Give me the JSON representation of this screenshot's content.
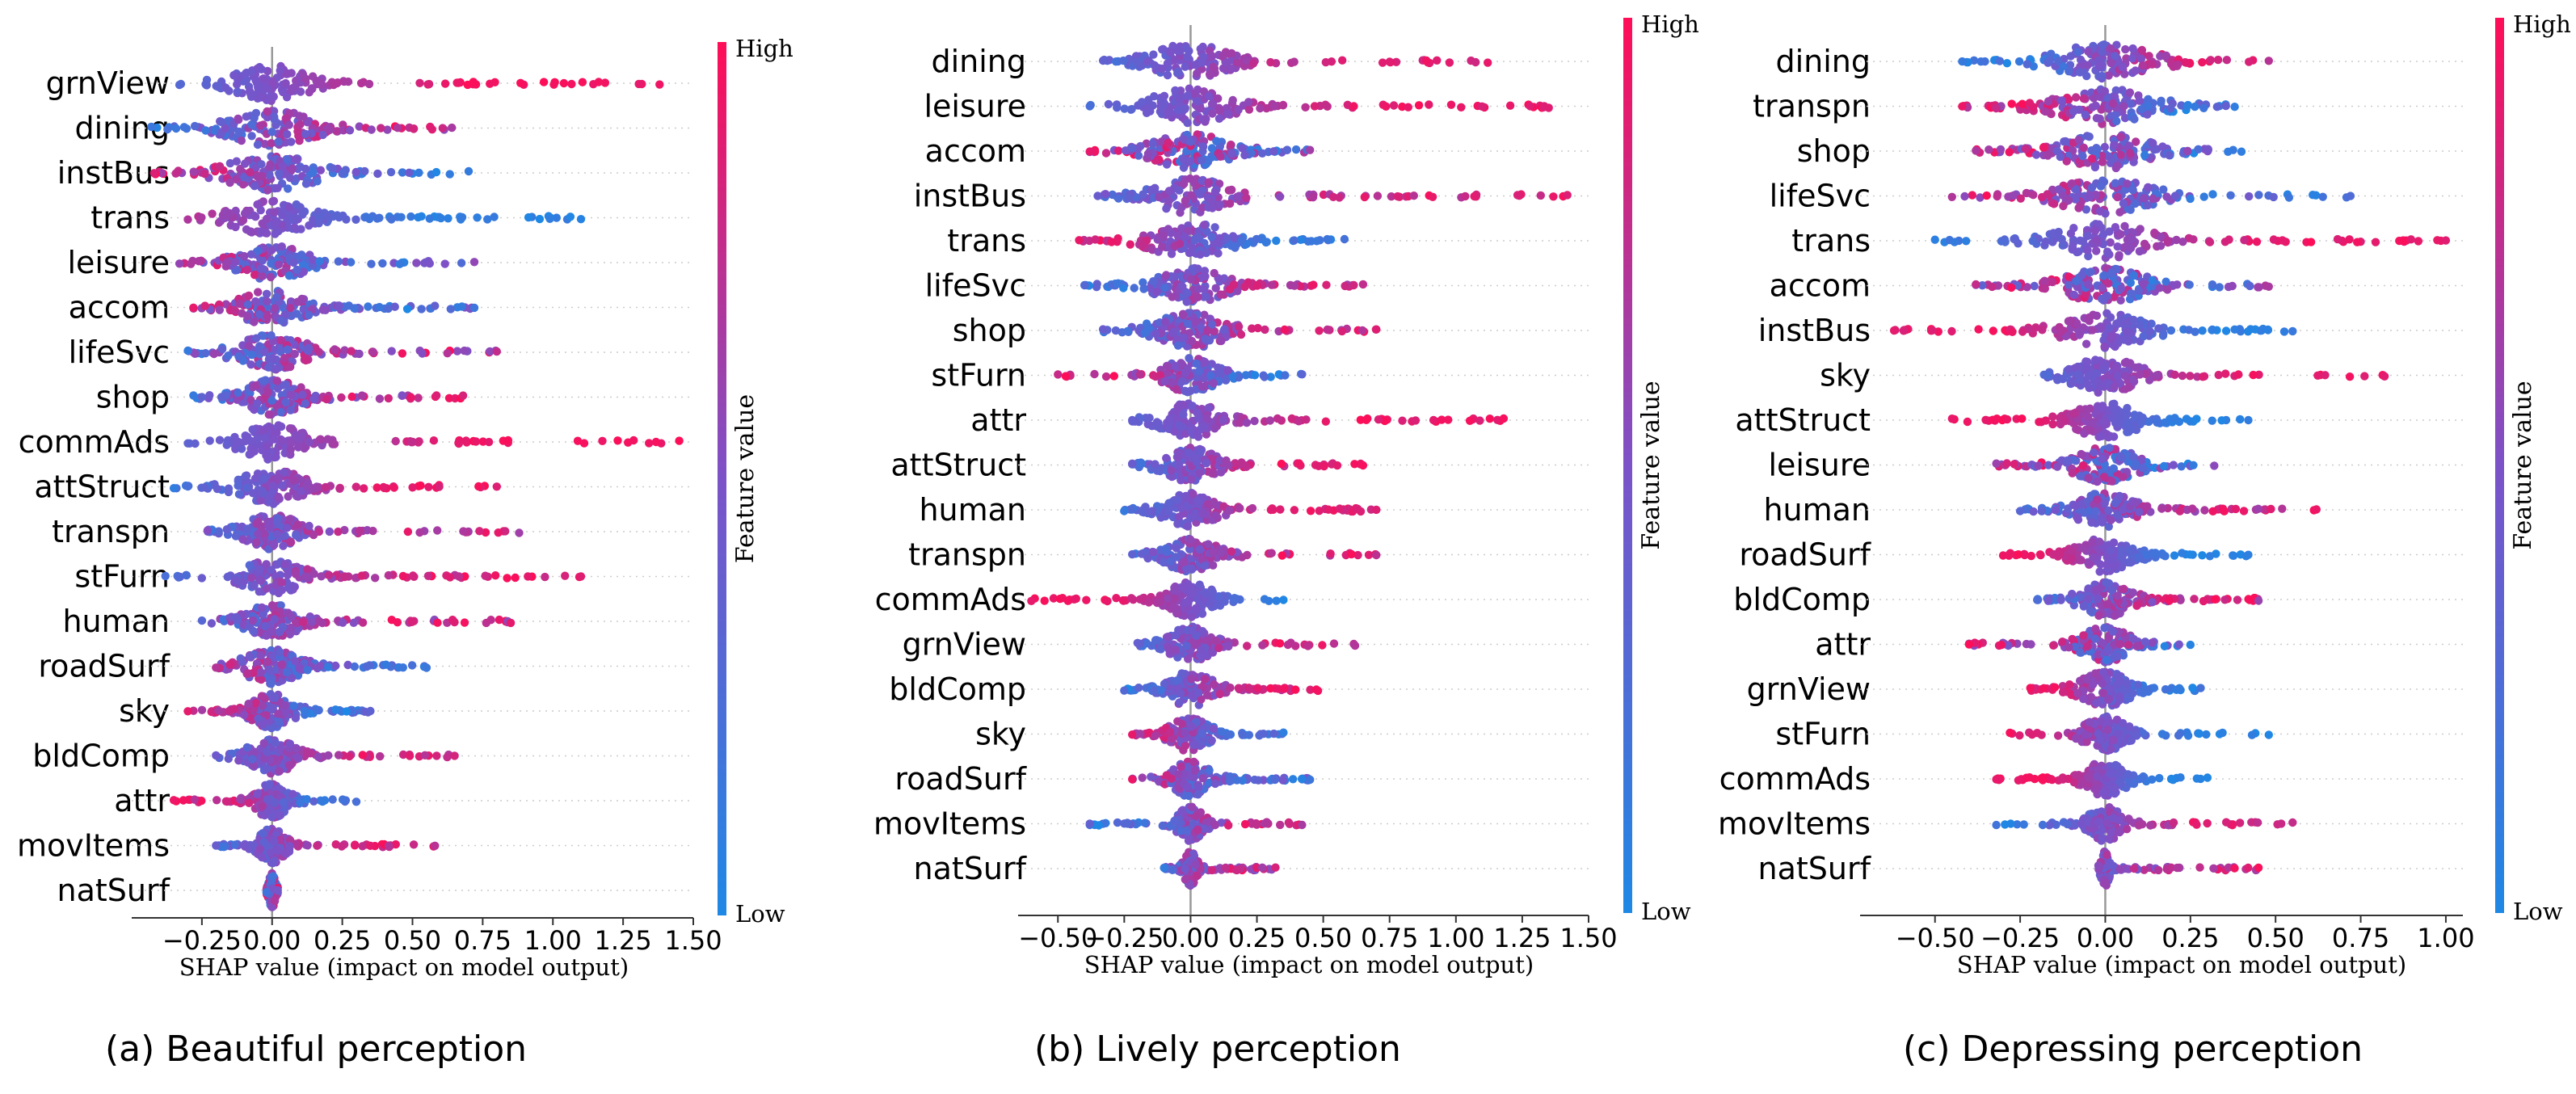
{
  "figure": {
    "colorbar_high": "High",
    "colorbar_low": "Low",
    "colorbar_label": "Feature value",
    "colors": {
      "low": "#1e88e5",
      "mid": "#7c52c8",
      "high": "#ff0d57"
    }
  },
  "chart_data": [
    {
      "type": "scatter",
      "subtype": "shap-beeswarm",
      "caption": "(a)  Beautiful perception",
      "xlabel": "SHAP value (impact on model output)",
      "xlim": [
        -0.5,
        1.5
      ],
      "xticks": [
        -0.25,
        0.0,
        0.25,
        0.5,
        0.75,
        1.0,
        1.25,
        1.5
      ],
      "xtick_labels": [
        "−0.25",
        "0.00",
        "0.25",
        "0.50",
        "0.75",
        "1.00",
        "1.25",
        "1.50"
      ],
      "features": [
        {
          "name": "grnView",
          "min": -0.33,
          "max": 1.38,
          "core": 0.11,
          "pos_high": true,
          "mix": 0.9
        },
        {
          "name": "dining",
          "min": -0.43,
          "max": 0.64,
          "core": 0.13,
          "pos_high": true,
          "mix": 0.55
        },
        {
          "name": "instBus",
          "min": -0.42,
          "max": 0.7,
          "core": 0.13,
          "pos_high": false,
          "mix": 0.55
        },
        {
          "name": "trans",
          "min": -0.3,
          "max": 1.1,
          "core": 0.11,
          "pos_high": false,
          "mix": 0.85
        },
        {
          "name": "leisure",
          "min": -0.33,
          "max": 0.72,
          "core": 0.1,
          "pos_high": false,
          "mix": 0.4
        },
        {
          "name": "accom",
          "min": -0.28,
          "max": 0.72,
          "core": 0.1,
          "pos_high": false,
          "mix": 0.45
        },
        {
          "name": "lifeSvc",
          "min": -0.3,
          "max": 0.8,
          "core": 0.1,
          "pos_high": true,
          "mix": 0.5
        },
        {
          "name": "shop",
          "min": -0.28,
          "max": 0.68,
          "core": 0.09,
          "pos_high": true,
          "mix": 0.5
        },
        {
          "name": "commAds",
          "min": -0.3,
          "max": 1.45,
          "core": 0.09,
          "pos_high": true,
          "mix": 0.9
        },
        {
          "name": "attStruct",
          "min": -0.35,
          "max": 0.8,
          "core": 0.09,
          "pos_high": true,
          "mix": 0.8
        },
        {
          "name": "transpn",
          "min": -0.23,
          "max": 0.88,
          "core": 0.08,
          "pos_high": true,
          "mix": 0.6
        },
        {
          "name": "stFurn",
          "min": -0.38,
          "max": 1.1,
          "core": 0.09,
          "pos_high": true,
          "mix": 0.7
        },
        {
          "name": "human",
          "min": -0.25,
          "max": 0.85,
          "core": 0.08,
          "pos_high": true,
          "mix": 0.55
        },
        {
          "name": "roadSurf",
          "min": -0.2,
          "max": 0.55,
          "core": 0.08,
          "pos_high": false,
          "mix": 0.5
        },
        {
          "name": "sky",
          "min": -0.3,
          "max": 0.35,
          "core": 0.06,
          "pos_high": false,
          "mix": 0.6
        },
        {
          "name": "bldComp",
          "min": -0.2,
          "max": 0.65,
          "core": 0.07,
          "pos_high": true,
          "mix": 0.7
        },
        {
          "name": "attr",
          "min": -0.35,
          "max": 0.3,
          "core": 0.05,
          "pos_high": false,
          "mix": 0.7
        },
        {
          "name": "movItems",
          "min": -0.2,
          "max": 0.58,
          "core": 0.04,
          "pos_high": true,
          "mix": 0.7
        },
        {
          "name": "natSurf",
          "min": -0.02,
          "max": 0.02,
          "core": 0.01,
          "pos_high": true,
          "mix": 0.1
        }
      ]
    },
    {
      "type": "scatter",
      "subtype": "shap-beeswarm",
      "caption": "(b)  Lively perception",
      "xlabel": "SHAP value (impact on model output)",
      "xlim": [
        -0.65,
        1.5
      ],
      "xticks": [
        -0.5,
        -0.25,
        0.0,
        0.25,
        0.5,
        0.75,
        1.0,
        1.25,
        1.5
      ],
      "xtick_labels": [
        "−0.50",
        "−0.25",
        "0.00",
        "0.25",
        "0.50",
        "0.75",
        "1.00",
        "1.25",
        "1.50"
      ],
      "features": [
        {
          "name": "dining",
          "min": -0.33,
          "max": 1.12,
          "core": 0.12,
          "pos_high": true,
          "mix": 0.8
        },
        {
          "name": "leisure",
          "min": -0.38,
          "max": 1.35,
          "core": 0.12,
          "pos_high": true,
          "mix": 0.85
        },
        {
          "name": "accom",
          "min": -0.38,
          "max": 0.45,
          "core": 0.12,
          "pos_high": false,
          "mix": 0.3
        },
        {
          "name": "instBus",
          "min": -0.35,
          "max": 1.42,
          "core": 0.12,
          "pos_high": true,
          "mix": 0.7
        },
        {
          "name": "trans",
          "min": -0.42,
          "max": 0.58,
          "core": 0.12,
          "pos_high": false,
          "mix": 0.7
        },
        {
          "name": "lifeSvc",
          "min": -0.4,
          "max": 0.65,
          "core": 0.11,
          "pos_high": true,
          "mix": 0.6
        },
        {
          "name": "shop",
          "min": -0.33,
          "max": 0.7,
          "core": 0.11,
          "pos_high": true,
          "mix": 0.6
        },
        {
          "name": "stFurn",
          "min": -0.5,
          "max": 0.42,
          "core": 0.08,
          "pos_high": false,
          "mix": 0.6
        },
        {
          "name": "attr",
          "min": -0.22,
          "max": 1.18,
          "core": 0.09,
          "pos_high": true,
          "mix": 0.85
        },
        {
          "name": "attStruct",
          "min": -0.22,
          "max": 0.65,
          "core": 0.08,
          "pos_high": true,
          "mix": 0.7
        },
        {
          "name": "human",
          "min": -0.25,
          "max": 0.7,
          "core": 0.08,
          "pos_high": true,
          "mix": 0.8
        },
        {
          "name": "transpn",
          "min": -0.22,
          "max": 0.7,
          "core": 0.08,
          "pos_high": true,
          "mix": 0.65
        },
        {
          "name": "commAds",
          "min": -0.6,
          "max": 0.35,
          "core": 0.07,
          "pos_high": false,
          "mix": 0.9
        },
        {
          "name": "grnView",
          "min": -0.2,
          "max": 0.62,
          "core": 0.07,
          "pos_high": true,
          "mix": 0.7
        },
        {
          "name": "bldComp",
          "min": -0.25,
          "max": 0.48,
          "core": 0.07,
          "pos_high": true,
          "mix": 0.7
        },
        {
          "name": "sky",
          "min": -0.22,
          "max": 0.35,
          "core": 0.06,
          "pos_high": false,
          "mix": 0.6
        },
        {
          "name": "roadSurf",
          "min": -0.22,
          "max": 0.45,
          "core": 0.06,
          "pos_high": false,
          "mix": 0.5
        },
        {
          "name": "movItems",
          "min": -0.38,
          "max": 0.42,
          "core": 0.04,
          "pos_high": true,
          "mix": 0.6
        },
        {
          "name": "natSurf",
          "min": -0.1,
          "max": 0.32,
          "core": 0.02,
          "pos_high": true,
          "mix": 0.5
        }
      ]
    },
    {
      "type": "scatter",
      "subtype": "shap-beeswarm",
      "caption": "(c)  Depressing perception",
      "xlabel": "SHAP value (impact on model output)",
      "xlim": [
        -0.72,
        1.05
      ],
      "xticks": [
        -0.5,
        -0.25,
        0.0,
        0.25,
        0.5,
        0.75,
        1.0
      ],
      "xtick_labels": [
        "−0.50",
        "−0.25",
        "0.00",
        "0.25",
        "0.50",
        "0.75",
        "1.00"
      ],
      "features": [
        {
          "name": "dining",
          "min": -0.42,
          "max": 0.48,
          "core": 0.12,
          "pos_high": true,
          "mix": 0.7
        },
        {
          "name": "transpn",
          "min": -0.42,
          "max": 0.38,
          "core": 0.12,
          "pos_high": false,
          "mix": 0.6
        },
        {
          "name": "shop",
          "min": -0.38,
          "max": 0.4,
          "core": 0.11,
          "pos_high": false,
          "mix": 0.4
        },
        {
          "name": "lifeSvc",
          "min": -0.45,
          "max": 0.72,
          "core": 0.11,
          "pos_high": false,
          "mix": 0.55
        },
        {
          "name": "trans",
          "min": -0.5,
          "max": 1.0,
          "core": 0.11,
          "pos_high": true,
          "mix": 0.85
        },
        {
          "name": "accom",
          "min": -0.38,
          "max": 0.48,
          "core": 0.1,
          "pos_high": false,
          "mix": 0.3
        },
        {
          "name": "instBus",
          "min": -0.62,
          "max": 0.55,
          "core": 0.1,
          "pos_high": false,
          "mix": 0.85
        },
        {
          "name": "sky",
          "min": -0.18,
          "max": 0.82,
          "core": 0.08,
          "pos_high": true,
          "mix": 0.85
        },
        {
          "name": "attStruct",
          "min": -0.45,
          "max": 0.42,
          "core": 0.08,
          "pos_high": false,
          "mix": 0.9
        },
        {
          "name": "leisure",
          "min": -0.32,
          "max": 0.32,
          "core": 0.08,
          "pos_high": false,
          "mix": 0.35
        },
        {
          "name": "human",
          "min": -0.25,
          "max": 0.62,
          "core": 0.07,
          "pos_high": true,
          "mix": 0.6
        },
        {
          "name": "roadSurf",
          "min": -0.3,
          "max": 0.42,
          "core": 0.07,
          "pos_high": false,
          "mix": 0.9
        },
        {
          "name": "bldComp",
          "min": -0.2,
          "max": 0.45,
          "core": 0.06,
          "pos_high": true,
          "mix": 0.6
        },
        {
          "name": "attr",
          "min": -0.4,
          "max": 0.25,
          "core": 0.06,
          "pos_high": false,
          "mix": 0.35
        },
        {
          "name": "grnView",
          "min": -0.22,
          "max": 0.28,
          "core": 0.06,
          "pos_high": false,
          "mix": 0.75
        },
        {
          "name": "stFurn",
          "min": -0.28,
          "max": 0.48,
          "core": 0.05,
          "pos_high": false,
          "mix": 0.8
        },
        {
          "name": "commAds",
          "min": -0.32,
          "max": 0.3,
          "core": 0.05,
          "pos_high": false,
          "mix": 0.9
        },
        {
          "name": "movItems",
          "min": -0.32,
          "max": 0.55,
          "core": 0.04,
          "pos_high": true,
          "mix": 0.75
        },
        {
          "name": "natSurf",
          "min": -0.02,
          "max": 0.45,
          "core": 0.01,
          "pos_high": true,
          "mix": 0.6
        }
      ]
    }
  ]
}
